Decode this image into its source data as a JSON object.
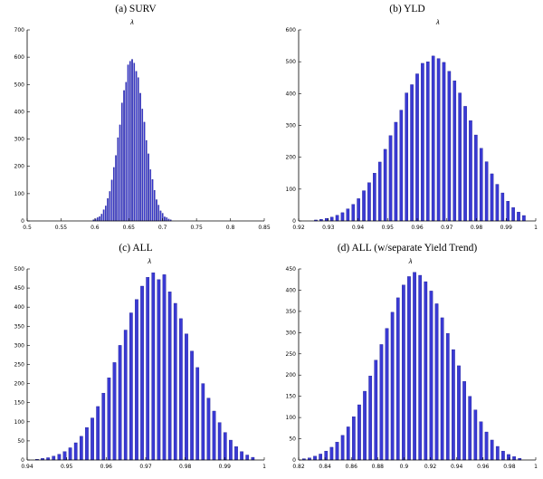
{
  "figure": {
    "background": "#ffffff"
  },
  "colors": {
    "bar_fill": "#3a3ad4",
    "bar_edge": "#14148c",
    "axis": "#000000",
    "text": "#000000"
  },
  "chart_data": [
    {
      "type": "bar",
      "title": "(a) SURV",
      "marker_symbol": "λ",
      "marker_x": 0.655,
      "xlabel": "",
      "ylabel": "",
      "xlim": [
        0.5,
        0.85
      ],
      "ylim": [
        0,
        700
      ],
      "xticks": [
        0.5,
        0.55,
        0.6,
        0.65,
        0.7,
        0.75,
        0.8,
        0.85
      ],
      "yticks": [
        0,
        100,
        200,
        300,
        400,
        500,
        600,
        700
      ],
      "bin_width": 0.003,
      "bin_centers": [
        0.598,
        0.601,
        0.604,
        0.607,
        0.61,
        0.613,
        0.616,
        0.619,
        0.622,
        0.625,
        0.628,
        0.631,
        0.634,
        0.637,
        0.64,
        0.643,
        0.646,
        0.649,
        0.652,
        0.655,
        0.658,
        0.661,
        0.664,
        0.667,
        0.67,
        0.673,
        0.676,
        0.679,
        0.682,
        0.685,
        0.688,
        0.691,
        0.694,
        0.697,
        0.7,
        0.703,
        0.706,
        0.709,
        0.712
      ],
      "counts": [
        4,
        8,
        12,
        16,
        25,
        41,
        55,
        82,
        108,
        150,
        196,
        240,
        305,
        352,
        432,
        478,
        508,
        572,
        585,
        592,
        578,
        548,
        525,
        468,
        410,
        362,
        295,
        246,
        188,
        152,
        112,
        78,
        58,
        37,
        28,
        15,
        12,
        7,
        4
      ]
    },
    {
      "type": "bar",
      "title": "(b) YLD",
      "marker_symbol": "λ",
      "marker_x": 0.967,
      "xlabel": "",
      "ylabel": "",
      "xlim": [
        0.92,
        1.0
      ],
      "ylim": [
        0,
        600
      ],
      "xticks": [
        0.92,
        0.93,
        0.94,
        0.95,
        0.96,
        0.97,
        0.98,
        0.99,
        1
      ],
      "yticks": [
        0,
        100,
        200,
        300,
        400,
        500,
        600
      ],
      "bin_width": 0.0018,
      "bin_centers": [
        0.9258,
        0.9276,
        0.9294,
        0.9312,
        0.933,
        0.9348,
        0.9366,
        0.9384,
        0.9402,
        0.942,
        0.9438,
        0.9456,
        0.9474,
        0.9492,
        0.951,
        0.9528,
        0.9546,
        0.9564,
        0.9582,
        0.96,
        0.9618,
        0.9636,
        0.9654,
        0.9672,
        0.969,
        0.9708,
        0.9726,
        0.9744,
        0.9762,
        0.978,
        0.9798,
        0.9816,
        0.9834,
        0.9852,
        0.987,
        0.9888,
        0.9906,
        0.9924,
        0.9942,
        0.996
      ],
      "counts": [
        3,
        5,
        8,
        12,
        18,
        26,
        38,
        52,
        70,
        95,
        120,
        150,
        185,
        225,
        268,
        310,
        348,
        402,
        428,
        462,
        495,
        500,
        518,
        510,
        498,
        470,
        440,
        402,
        360,
        315,
        270,
        228,
        186,
        148,
        115,
        88,
        62,
        42,
        28,
        17
      ]
    },
    {
      "type": "bar",
      "title": "(c) ALL",
      "marker_symbol": "λ",
      "marker_x": 0.971,
      "xlabel": "",
      "ylabel": "",
      "xlim": [
        0.94,
        1.0
      ],
      "ylim": [
        0,
        500
      ],
      "xticks": [
        0.94,
        0.95,
        0.96,
        0.97,
        0.98,
        0.99,
        1
      ],
      "yticks": [
        0,
        50,
        100,
        150,
        200,
        250,
        300,
        350,
        400,
        450,
        500
      ],
      "bin_width": 0.0014,
      "bin_centers": [
        0.9425,
        0.9439,
        0.9453,
        0.9467,
        0.9481,
        0.9495,
        0.9509,
        0.9523,
        0.9537,
        0.9551,
        0.9565,
        0.9579,
        0.9593,
        0.9607,
        0.9621,
        0.9635,
        0.9649,
        0.9663,
        0.9677,
        0.9691,
        0.9705,
        0.9719,
        0.9733,
        0.9747,
        0.9761,
        0.9775,
        0.9789,
        0.9803,
        0.9817,
        0.9831,
        0.9845,
        0.9859,
        0.9873,
        0.9887,
        0.9901,
        0.9915,
        0.9929,
        0.9943,
        0.9957,
        0.9971
      ],
      "counts": [
        2,
        4,
        6,
        10,
        15,
        22,
        32,
        45,
        62,
        85,
        110,
        140,
        175,
        215,
        255,
        300,
        340,
        385,
        420,
        455,
        478,
        490,
        472,
        485,
        440,
        410,
        370,
        330,
        285,
        242,
        200,
        162,
        128,
        98,
        72,
        52,
        35,
        22,
        13,
        7
      ]
    },
    {
      "type": "bar",
      "title": "(d) ALL (w/separate Yield Trend)",
      "marker_symbol": "λ",
      "marker_x": 0.905,
      "xlabel": "",
      "ylabel": "",
      "xlim": [
        0.82,
        1.0
      ],
      "ylim": [
        0,
        450
      ],
      "xticks": [
        0.82,
        0.84,
        0.86,
        0.88,
        0.9,
        0.92,
        0.94,
        0.96,
        0.98,
        1
      ],
      "yticks": [
        0,
        50,
        100,
        150,
        200,
        250,
        300,
        350,
        400,
        450
      ],
      "bin_width": 0.0042,
      "bin_centers": [
        0.824,
        0.8282,
        0.8324,
        0.8366,
        0.8408,
        0.845,
        0.8492,
        0.8534,
        0.8576,
        0.8618,
        0.866,
        0.8702,
        0.8744,
        0.8786,
        0.8828,
        0.887,
        0.8912,
        0.8954,
        0.8996,
        0.9038,
        0.908,
        0.9122,
        0.9164,
        0.9206,
        0.9248,
        0.929,
        0.9332,
        0.9374,
        0.9416,
        0.9458,
        0.95,
        0.9542,
        0.9584,
        0.9626,
        0.9668,
        0.971,
        0.9752,
        0.9794,
        0.9836,
        0.9878
      ],
      "counts": [
        3,
        5,
        9,
        14,
        21,
        30,
        42,
        58,
        78,
        102,
        130,
        162,
        198,
        235,
        272,
        310,
        348,
        382,
        412,
        432,
        442,
        435,
        420,
        398,
        368,
        335,
        298,
        260,
        222,
        185,
        150,
        118,
        90,
        66,
        47,
        32,
        21,
        13,
        8,
        4
      ]
    }
  ]
}
